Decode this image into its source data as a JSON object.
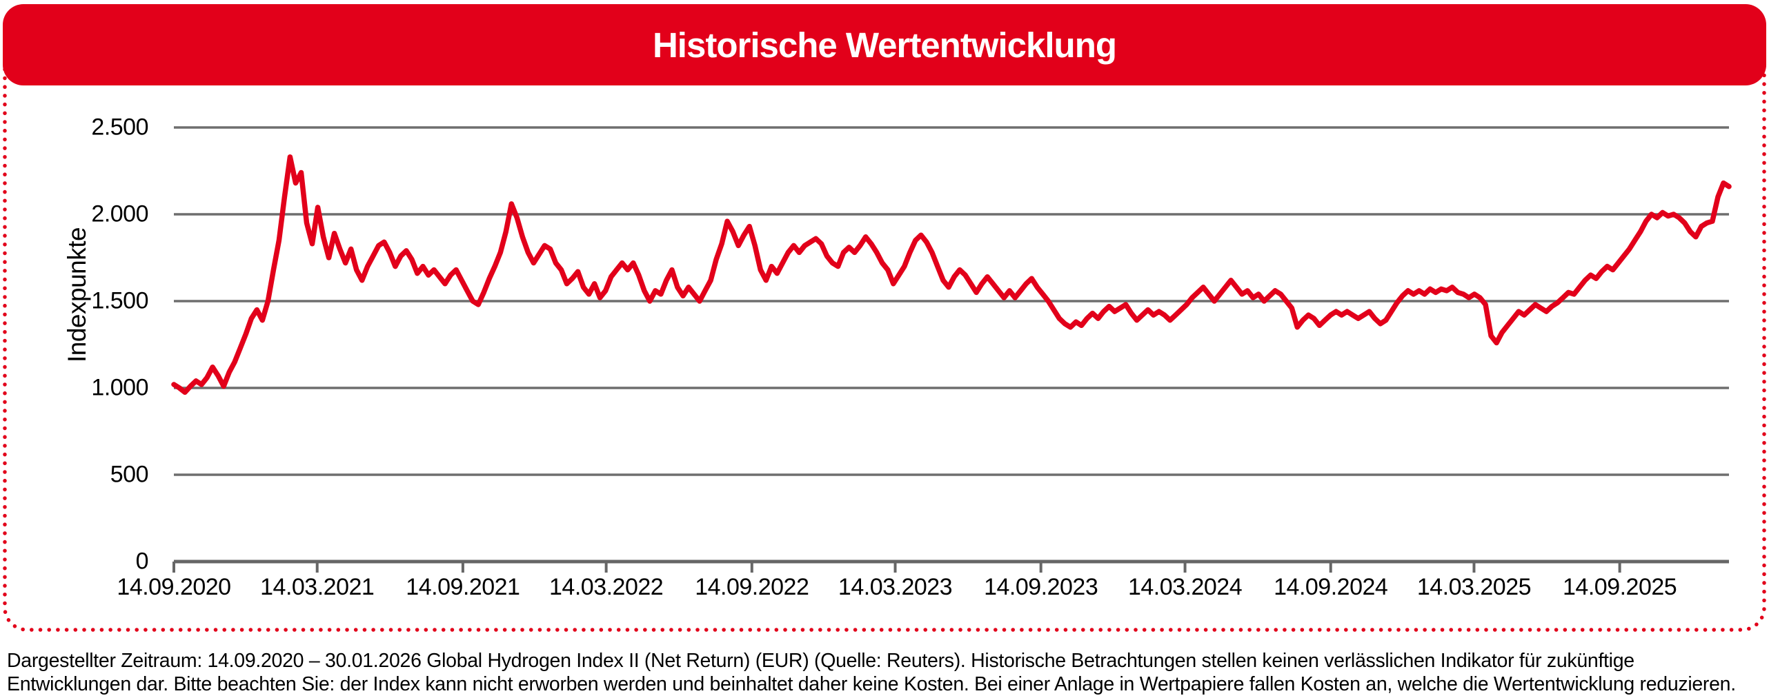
{
  "header": {
    "title": "Historische Wertentwicklung"
  },
  "colors": {
    "brand_red": "#E2001A",
    "grid_gray": "#6E6E6E",
    "axis_gray": "#666666",
    "text": "#000000",
    "title_text": "#FFFFFF",
    "background": "#FFFFFF"
  },
  "chart_data": {
    "type": "line",
    "title": "Historische Wertentwicklung",
    "ylabel": "Indexpunkte",
    "series_name": "Global Hydrogen Index II (Net Return) (EUR)",
    "x_start_date": "14.09.2020",
    "x_end_date": "30.01.2026",
    "x_tick_labels": [
      "14.09.2020",
      "14.03.2021",
      "14.09.2021",
      "14.03.2022",
      "14.09.2022",
      "14.03.2023",
      "14.09.2023",
      "14.03.2024",
      "14.09.2024",
      "14.03.2025",
      "14.09.2025"
    ],
    "x_tick_positions_days": [
      0,
      181,
      365,
      546,
      730,
      911,
      1095,
      1277,
      1461,
      1642,
      1826
    ],
    "x_total_days": 1964,
    "ylim": [
      0,
      2500
    ],
    "y_ticks": [
      0,
      500,
      1000,
      1500,
      2000,
      2500
    ],
    "y_tick_labels": [
      "0",
      "500",
      "1.000",
      "1.500",
      "2.000",
      "2.500"
    ],
    "grid": true,
    "legend": "none",
    "line_color": "#E2001A",
    "values_interval": "weekly",
    "values": [
      1020,
      1000,
      975,
      1010,
      1040,
      1020,
      1060,
      1120,
      1070,
      1010,
      1090,
      1150,
      1230,
      1310,
      1400,
      1450,
      1390,
      1500,
      1680,
      1850,
      2100,
      2330,
      2180,
      2240,
      1950,
      1830,
      2040,
      1870,
      1750,
      1890,
      1800,
      1720,
      1800,
      1680,
      1620,
      1700,
      1760,
      1820,
      1840,
      1780,
      1700,
      1760,
      1790,
      1740,
      1660,
      1700,
      1650,
      1680,
      1640,
      1600,
      1650,
      1680,
      1620,
      1560,
      1500,
      1480,
      1550,
      1630,
      1700,
      1780,
      1900,
      2060,
      1980,
      1870,
      1780,
      1720,
      1770,
      1820,
      1800,
      1720,
      1680,
      1600,
      1630,
      1670,
      1580,
      1540,
      1600,
      1520,
      1560,
      1640,
      1680,
      1720,
      1680,
      1720,
      1650,
      1560,
      1500,
      1560,
      1540,
      1620,
      1680,
      1580,
      1530,
      1580,
      1540,
      1500,
      1560,
      1620,
      1740,
      1830,
      1960,
      1900,
      1820,
      1880,
      1930,
      1820,
      1680,
      1620,
      1700,
      1660,
      1720,
      1780,
      1820,
      1780,
      1820,
      1840,
      1860,
      1830,
      1760,
      1720,
      1700,
      1780,
      1810,
      1780,
      1820,
      1870,
      1830,
      1780,
      1720,
      1680,
      1600,
      1650,
      1700,
      1780,
      1850,
      1880,
      1840,
      1780,
      1700,
      1620,
      1580,
      1640,
      1680,
      1650,
      1600,
      1550,
      1600,
      1640,
      1600,
      1560,
      1520,
      1560,
      1520,
      1560,
      1600,
      1630,
      1580,
      1540,
      1500,
      1450,
      1400,
      1370,
      1350,
      1380,
      1360,
      1400,
      1430,
      1400,
      1440,
      1470,
      1440,
      1460,
      1480,
      1430,
      1390,
      1420,
      1450,
      1420,
      1440,
      1420,
      1390,
      1420,
      1450,
      1480,
      1520,
      1550,
      1580,
      1540,
      1500,
      1540,
      1580,
      1620,
      1580,
      1540,
      1560,
      1520,
      1540,
      1500,
      1530,
      1560,
      1540,
      1500,
      1460,
      1350,
      1390,
      1420,
      1400,
      1360,
      1390,
      1420,
      1440,
      1420,
      1440,
      1420,
      1400,
      1420,
      1440,
      1400,
      1370,
      1390,
      1440,
      1490,
      1530,
      1560,
      1540,
      1560,
      1540,
      1570,
      1550,
      1570,
      1560,
      1580,
      1550,
      1540,
      1520,
      1540,
      1520,
      1480,
      1300,
      1260,
      1320,
      1360,
      1400,
      1440,
      1420,
      1450,
      1480,
      1460,
      1440,
      1470,
      1490,
      1520,
      1550,
      1540,
      1580,
      1620,
      1650,
      1630,
      1670,
      1700,
      1680,
      1720,
      1760,
      1800,
      1850,
      1900,
      1960,
      2000,
      1980,
      2010,
      1990,
      2000,
      1980,
      1950,
      1900,
      1870,
      1930,
      1950,
      1960,
      2100,
      2180,
      2160
    ]
  },
  "footer": {
    "line1": "Dargestellter Zeitraum: 14.09.2020 – 30.01.2026 Global Hydrogen Index II (Net Return) (EUR) (Quelle: Reuters). Historische Betrachtungen stellen keinen verlässlichen Indikator für zukünftige",
    "line2": "Entwicklungen dar. Bitte beachten Sie: der Index kann nicht erworben werden und beinhaltet daher keine Kosten. Bei einer Anlage in Wertpapiere fallen Kosten an, welche die Wertentwicklung reduzieren."
  }
}
